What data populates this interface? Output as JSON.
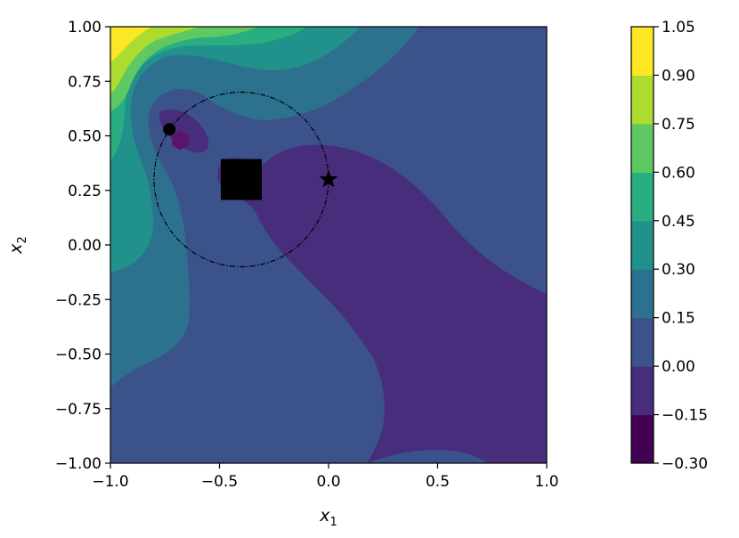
{
  "chart_data": {
    "type": "contour",
    "xlabel": "x",
    "xlabel_subscript": "1",
    "ylabel": "x",
    "ylabel_subscript": "2",
    "xlim": [
      -1.0,
      1.0
    ],
    "ylim": [
      -1.0,
      1.0
    ],
    "xticks": [
      "−1.0",
      "−0.5",
      "0.0",
      "0.5",
      "1.0"
    ],
    "xtick_values": [
      -1.0,
      -0.5,
      0.0,
      0.5,
      1.0
    ],
    "yticks": [
      "−1.00",
      "−0.75",
      "−0.50",
      "−0.25",
      "0.00",
      "0.25",
      "0.50",
      "0.75",
      "1.00"
    ],
    "ytick_values": [
      -1.0,
      -0.75,
      -0.5,
      -0.25,
      0.0,
      0.25,
      0.5,
      0.75,
      1.0
    ],
    "grid": false,
    "colorbar": {
      "levels": [
        -0.3,
        -0.15,
        0.0,
        0.15,
        0.3,
        0.45,
        0.6,
        0.75,
        0.9,
        1.05
      ],
      "tick_labels": [
        "−0.30",
        "−0.15",
        "0.00",
        "0.15",
        "0.30",
        "0.45",
        "0.60",
        "0.75",
        "0.90",
        "1.05"
      ],
      "colormap": "viridis",
      "band_colors": [
        "#440154",
        "#472d7b",
        "#3b528b",
        "#2c728e",
        "#21918c",
        "#28ae80",
        "#5ec962",
        "#addc30",
        "#fde725"
      ]
    },
    "markers": [
      {
        "shape": "square",
        "x": -0.4,
        "y": 0.3,
        "color": "#000000"
      },
      {
        "shape": "star",
        "x": 0.0,
        "y": 0.3,
        "color": "#000000"
      },
      {
        "shape": "circle",
        "x": -0.73,
        "y": 0.53,
        "color": "#000000"
      },
      {
        "shape": "hexagon",
        "x": -0.68,
        "y": 0.48,
        "color": "#5a1470"
      }
    ],
    "circle": {
      "center": [
        -0.4,
        0.3
      ],
      "radius": 0.4,
      "style": "dash-dot",
      "color": "#000000"
    }
  }
}
